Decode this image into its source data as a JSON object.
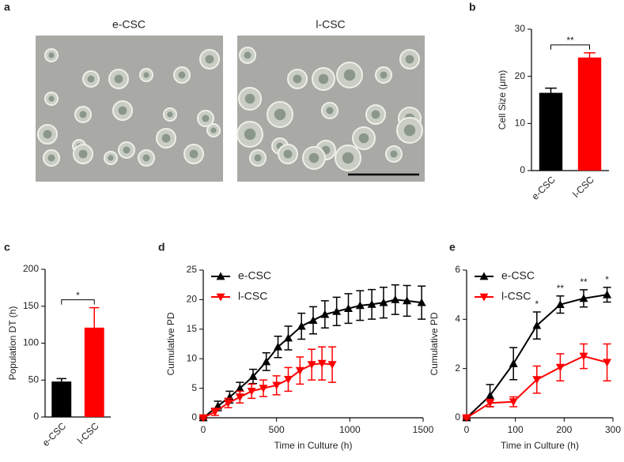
{
  "figure": {
    "panel_labels": [
      "a",
      "b",
      "c",
      "d",
      "e"
    ],
    "images": [
      {
        "label": "e-CSC"
      },
      {
        "label": "l-CSC"
      }
    ]
  },
  "chart_data": [
    {
      "type": "bar",
      "ylabel": "Cell Size (μm)",
      "categories": [
        "e-CSC",
        "l-CSC"
      ],
      "values": [
        16.5,
        24
      ],
      "errors": [
        1,
        1
      ],
      "colors": [
        "#000000",
        "#ff0000"
      ],
      "ylim": [
        0,
        30
      ],
      "yticks": [
        0,
        10,
        20,
        30
      ],
      "significance": "**"
    },
    {
      "type": "bar",
      "ylabel": "Population DT (h)",
      "categories": [
        "e-CSC",
        "l-CSC"
      ],
      "values": [
        48,
        121
      ],
      "errors": [
        4,
        27
      ],
      "colors": [
        "#000000",
        "#ff0000"
      ],
      "ylim": [
        0,
        200
      ],
      "yticks": [
        0,
        50,
        100,
        150,
        200
      ],
      "significance": "*"
    },
    {
      "type": "line",
      "xlabel": "Time in Culture (h)",
      "ylabel": "Cumulative PD",
      "xlim": [
        0,
        1500
      ],
      "xticks": [
        0,
        500,
        1000,
        1500
      ],
      "ylim": [
        0,
        25
      ],
      "yticks": [
        0,
        5,
        10,
        15,
        20,
        25
      ],
      "legend": "upper left",
      "series": [
        {
          "name": "e-CSC",
          "color": "#000000",
          "marker": "triangle-up",
          "x": [
            0,
            100,
            180,
            250,
            340,
            430,
            510,
            580,
            670,
            750,
            830,
            910,
            990,
            1070,
            1150,
            1230,
            1310,
            1390,
            1490
          ],
          "values": [
            0,
            2,
            3.5,
            5,
            7,
            9.5,
            12,
            13.5,
            15.5,
            16.5,
            17.5,
            18,
            18.5,
            19,
            19.2,
            19.5,
            20,
            19.8,
            19.5
          ],
          "errors": [
            0.2,
            0.8,
            1,
            1,
            1.2,
            1.5,
            1.8,
            2,
            2.2,
            2.3,
            2.3,
            2.4,
            2.5,
            2.5,
            2.5,
            2.6,
            2.5,
            2.6,
            2.8
          ]
        },
        {
          "name": "l-CSC",
          "color": "#ff0000",
          "marker": "triangle-down",
          "x": [
            0,
            80,
            170,
            250,
            330,
            410,
            500,
            580,
            660,
            740,
            810,
            880
          ],
          "values": [
            0,
            1,
            2.5,
            3.5,
            4.5,
            5,
            5.5,
            6.5,
            8,
            9,
            9.2,
            9
          ],
          "errors": [
            0.2,
            0.6,
            0.8,
            1,
            1.2,
            1.4,
            1.6,
            2,
            2.3,
            2.6,
            2.8,
            3
          ]
        }
      ]
    },
    {
      "type": "line",
      "xlabel": "Time in Culture (h)",
      "ylabel": "Cumulative PD",
      "xlim": [
        0,
        300
      ],
      "xticks": [
        0,
        100,
        200,
        300
      ],
      "ylim": [
        0,
        6
      ],
      "yticks": [
        0,
        2,
        4,
        6
      ],
      "legend": "upper left",
      "x": [
        0,
        48,
        96,
        144,
        192,
        240,
        288
      ],
      "series": [
        {
          "name": "e-CSC",
          "color": "#000000",
          "marker": "triangle-up",
          "values": [
            0,
            0.9,
            2.2,
            3.75,
            4.6,
            4.85,
            5.0
          ],
          "errors": [
            0.1,
            0.45,
            0.65,
            0.55,
            0.35,
            0.35,
            0.3
          ]
        },
        {
          "name": "l-CSC",
          "color": "#ff0000",
          "marker": "triangle-down",
          "values": [
            0,
            0.6,
            0.65,
            1.55,
            2.05,
            2.5,
            2.25
          ],
          "errors": [
            0.05,
            0.15,
            0.2,
            0.55,
            0.55,
            0.5,
            0.75
          ]
        }
      ],
      "annotations": [
        {
          "x": 144,
          "text": "*"
        },
        {
          "x": 192,
          "text": "**"
        },
        {
          "x": 240,
          "text": "**"
        },
        {
          "x": 288,
          "text": "*"
        }
      ]
    }
  ]
}
